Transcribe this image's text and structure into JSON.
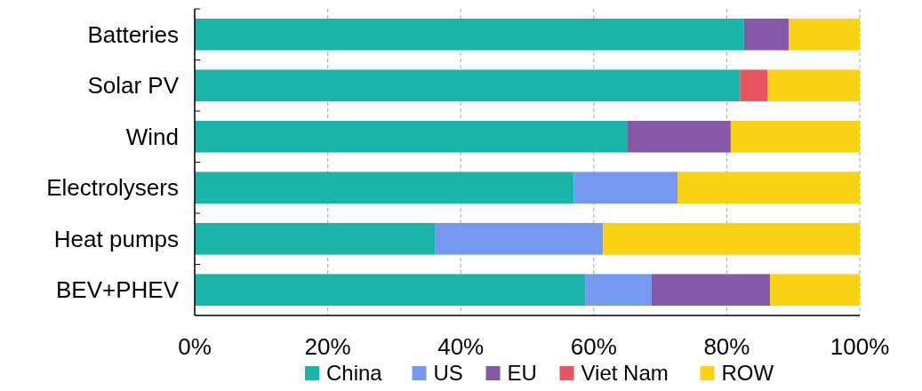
{
  "chart_data": {
    "type": "bar",
    "orientation": "horizontal",
    "stacked": true,
    "categories": [
      "Batteries",
      "Solar PV",
      "Wind",
      "Electrolysers",
      "Heat pumps",
      "BEV+PHEV"
    ],
    "series": [
      {
        "name": "China",
        "color": "#1ab5a8",
        "values": [
          82.6,
          82.0,
          65.0,
          57.0,
          36.2,
          58.7
        ]
      },
      {
        "name": "US",
        "color": "#7599f1",
        "values": [
          null,
          null,
          null,
          15.6,
          25.2,
          10.0
        ]
      },
      {
        "name": "EU",
        "color": "#8658a8",
        "values": [
          6.7,
          null,
          15.6,
          null,
          null,
          17.8
        ]
      },
      {
        "name": "Viet Nam",
        "color": "#e85560",
        "values": [
          null,
          4.1,
          null,
          null,
          null,
          null
        ]
      },
      {
        "name": "ROW",
        "color": "#fad214",
        "values": [
          10.7,
          13.9,
          19.4,
          27.4,
          38.6,
          13.5
        ]
      }
    ],
    "xlim": [
      0,
      100
    ],
    "xticks": [
      {
        "value": 0,
        "label": "0%"
      },
      {
        "value": 20,
        "label": "20%"
      },
      {
        "value": 40,
        "label": "40%"
      },
      {
        "value": 60,
        "label": "60%"
      },
      {
        "value": 80,
        "label": "80%"
      },
      {
        "value": 100,
        "label": "100%"
      }
    ],
    "grid": "x",
    "legend": "bottom",
    "marker": "square"
  }
}
